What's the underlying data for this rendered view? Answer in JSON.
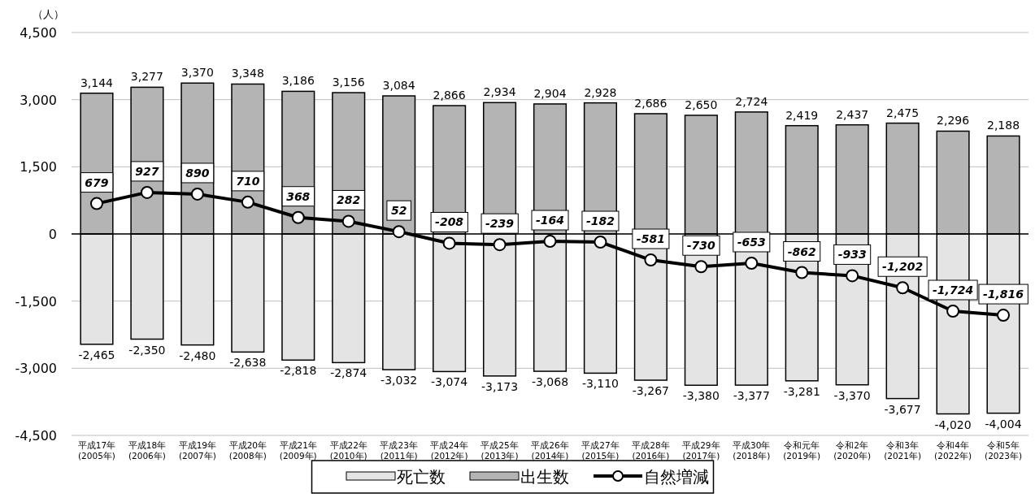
{
  "chart_data": {
    "type": "bar",
    "stacked": true,
    "ylabel": "（人）",
    "categories": [
      "平成17年\n(2005年)",
      "平成18年\n(2006年)",
      "平成19年\n(2007年)",
      "平成20年\n(2008年)",
      "平成21年\n(2009年)",
      "平成22年\n(2010年)",
      "平成23年\n(2011年)",
      "平成24年\n(2012年)",
      "平成25年\n(2013年)",
      "平成26年\n(2014年)",
      "平成27年\n(2015年)",
      "平成28年\n(2016年)",
      "平成29年\n(2017年)",
      "平成30年\n(2018年)",
      "令和元年\n(2019年)",
      "令和2年\n(2020年)",
      "令和3年\n(2021年)",
      "令和4年\n(2022年)",
      "令和5年\n(2023年)"
    ],
    "series": [
      {
        "name": "死亡数",
        "color": "#e4e4e4",
        "values": [
          -2465,
          -2350,
          -2480,
          -2638,
          -2818,
          -2874,
          -3032,
          -3074,
          -3173,
          -3068,
          -3110,
          -3267,
          -3380,
          -3377,
          -3281,
          -3370,
          -3677,
          -4020,
          -4004
        ],
        "value_labels": [
          "-2,465",
          "-2,350",
          "-2,480",
          "-2,638",
          "-2,818",
          "-2,874",
          "-3,032",
          "-3,074",
          "-3,173",
          "-3,068",
          "-3,110",
          "-3,267",
          "-3,380",
          "-3,377",
          "-3,281",
          "-3,370",
          "-3,677",
          "-4,020",
          "-4,004"
        ]
      },
      {
        "name": "出生数",
        "color": "#b4b4b4",
        "values": [
          3144,
          3277,
          3370,
          3348,
          3186,
          3156,
          3084,
          2866,
          2934,
          2904,
          2928,
          2686,
          2650,
          2724,
          2419,
          2437,
          2475,
          2296,
          2188
        ],
        "value_labels": [
          "3,144",
          "3,277",
          "3,370",
          "3,348",
          "3,186",
          "3,156",
          "3,084",
          "2,866",
          "2,934",
          "2,904",
          "2,928",
          "2,686",
          "2,650",
          "2,724",
          "2,419",
          "2,437",
          "2,475",
          "2,296",
          "2,188"
        ]
      },
      {
        "name": "自然増減",
        "type": "line",
        "color": "#000000",
        "marker": "circle",
        "values": [
          679,
          927,
          890,
          710,
          368,
          282,
          52,
          -208,
          -239,
          -164,
          -182,
          -581,
          -730,
          -653,
          -862,
          -933,
          -1202,
          -1724,
          -1816
        ],
        "value_labels": [
          "679",
          "927",
          "890",
          "710",
          "368",
          "282",
          "52",
          "-208",
          "-239",
          "-164",
          "-182",
          "-581",
          "-730",
          "-653",
          "-862",
          "-933",
          "-1,202",
          "-1,724",
          "-1,816"
        ]
      }
    ],
    "ylim": [
      -4500,
      4500
    ],
    "yticks": [
      {
        "value": -4500,
        "label": "-4,500"
      },
      {
        "value": -3000,
        "label": "-3,000"
      },
      {
        "value": -1500,
        "label": "-1,500"
      },
      0,
      {
        "value": 1500,
        "label": "1,500"
      },
      {
        "value": 3000,
        "label": "3,000"
      },
      {
        "value": 4500,
        "label": "4,500"
      }
    ],
    "grid": "y",
    "legend": "bottom"
  }
}
